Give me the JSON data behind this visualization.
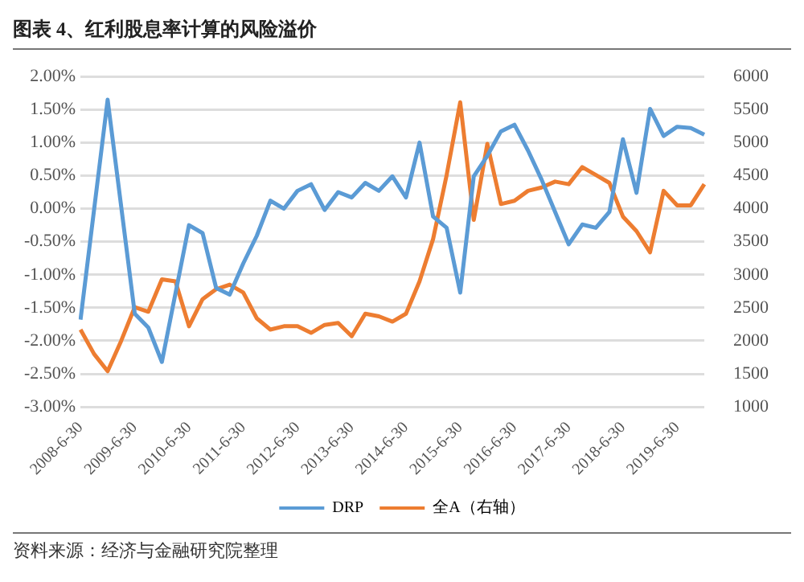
{
  "chart_data": {
    "type": "line",
    "title": "图表 4、红利股息率计算的风险溢价",
    "categories": [
      "2008-6-30",
      null,
      null,
      null,
      "2009-6-30",
      null,
      null,
      null,
      "2010-6-30",
      null,
      null,
      null,
      "2011-6-30",
      null,
      null,
      null,
      "2012-6-30",
      null,
      null,
      null,
      "2013-6-30",
      null,
      null,
      null,
      "2014-6-30",
      null,
      null,
      null,
      "2015-6-30",
      null,
      null,
      null,
      "2016-6-30",
      null,
      null,
      null,
      "2017-6-30",
      null,
      null,
      null,
      "2018-6-30",
      null,
      null,
      null,
      "2019-6-30",
      null,
      null
    ],
    "series": [
      {
        "name": "DRP",
        "color": "#5b9bd5",
        "values": [
          -1.68,
          null,
          1.65,
          null,
          -1.59,
          -1.8,
          -2.32,
          null,
          -0.25,
          -0.37,
          -1.2,
          -1.3,
          -0.83,
          -0.41,
          0.12,
          0,
          0.27,
          0.37,
          -0.02,
          0.25,
          0.17,
          0.39,
          0.27,
          0.49,
          0.17,
          1.0,
          -0.12,
          -0.29,
          -1.27,
          0.49,
          0.8,
          1.17,
          1.27,
          0.88,
          0.44,
          -0.05,
          -0.54,
          -0.24,
          -0.29,
          -0.05,
          1.05,
          0.24,
          1.51,
          1.1,
          1.24,
          1.22,
          1.12
        ]
      },
      {
        "name": "全A（右轴）",
        "color": "#ed7d31",
        "axis": "y2",
        "values": [
          2170,
          1800,
          1540,
          2000,
          2510,
          2440,
          2930,
          2900,
          2220,
          2630,
          2780,
          2850,
          2730,
          2340,
          2170,
          2220,
          2220,
          2120,
          2240,
          2270,
          2070,
          2410,
          2370,
          2290,
          2410,
          2900,
          3540,
          4510,
          5610,
          3830,
          4980,
          4070,
          4120,
          4270,
          4320,
          4410,
          4370,
          4630,
          4510,
          4390,
          3880,
          3660,
          3340,
          4270,
          4050,
          4050,
          4370
        ]
      }
    ],
    "ylim": [
      -3,
      2
    ],
    "yticks": [
      {
        "value": -3,
        "label": "-3.00%"
      },
      {
        "value": -2.5,
        "label": "-2.50%"
      },
      {
        "value": -2,
        "label": "-2.00%"
      },
      {
        "value": -1.5,
        "label": "-1.50%"
      },
      {
        "value": -1,
        "label": "-1.00%"
      },
      {
        "value": -0.5,
        "label": "-0.50%"
      },
      {
        "value": 0,
        "label": "0.00%"
      },
      {
        "value": 0.5,
        "label": "0.50%"
      },
      {
        "value": 1,
        "label": "1.00%"
      },
      {
        "value": 1.5,
        "label": "1.50%"
      },
      {
        "value": 2,
        "label": "2.00%"
      }
    ],
    "y2lim": [
      1000,
      6000
    ],
    "y2ticks": [
      1000,
      1500,
      2000,
      2500,
      3000,
      3500,
      4000,
      4500,
      5000,
      5500,
      6000
    ],
    "grid": "y",
    "legend": "bottom",
    "marker": "none",
    "line_style": "solid",
    "annotations": [
      "资料来源：经济与金融研究院整理"
    ]
  }
}
